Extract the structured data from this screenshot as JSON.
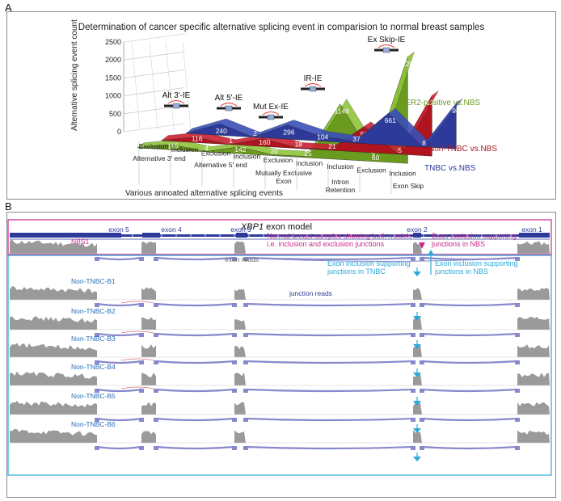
{
  "panelA": {
    "letter": "A",
    "title": "Determination of cancer specific alternative splicing event in comparision to normal breast samples",
    "ylabel": "Alternative splicing event count",
    "xlabel": "Various annoated alternative splicing events",
    "yticks": [
      "0",
      "500",
      "1000",
      "1500",
      "2000",
      "2500"
    ],
    "event_type_labels": [
      "Alt 3'-IE",
      "Alt 5'-IE",
      "Mut Ex-IE",
      "IR-IE",
      "Ex Skip-IE"
    ],
    "sub_categories": [
      "Exclusion",
      "Inclusion",
      "Exclusion",
      "Inclusion",
      "Exclusion",
      "Inclusion",
      "Inclusion",
      "Exclusion",
      "Inclusion"
    ],
    "groups": [
      "Alternative 3' end",
      "Alternative 5' end",
      "Mutually Exclusive Exon",
      "Intron Retention",
      "Exon Skip"
    ]
  },
  "chart_data": {
    "type": "area",
    "title": "Determination of cancer specific alternative splicing event in comparision to normal breast samples",
    "xlabel": "Various annoated alternative splicing events",
    "ylabel": "Alternative splicing event count",
    "ylim": [
      0,
      2500
    ],
    "categories": [
      "Alternative 3' end Exclusion",
      "Alternative 3' end Inclusion",
      "Alternative 5' end Exclusion",
      "Alternative 5' end Inclusion",
      "Mutually Exclusive Exon Exclusion",
      "Mutually Exclusive Exon Inclusion",
      "Intron Retention Inclusion",
      "Exon Skip Exclusion",
      "Exon Skip Inclusion"
    ],
    "series": [
      {
        "name": "TNBC vs.NBS",
        "color": "#2e3a9a",
        "values": [
          2,
          240,
          2,
          296,
          104,
          37,
          661,
          8,
          943
        ]
      },
      {
        "name": "Non-TNBC vs.NBS",
        "color": "#b0141e",
        "values": [
          7,
          116,
          1,
          160,
          18,
          21,
          528,
          5,
          1253
        ]
      },
      {
        "name": "HER2-positive vs.NBS",
        "color": "#6a9a1e",
        "values": [
          4,
          115,
          4,
          142,
          20,
          25,
          1148,
          60,
          2206
        ]
      }
    ]
  },
  "panelB": {
    "letter": "B",
    "gene_title": "XBP1",
    "gene_title_suffix": " exon model",
    "exons": [
      "exon 5",
      "exon 4",
      "exon 3",
      "exon 2",
      "exon 1"
    ],
    "samples": [
      "NBS1",
      "Non-TNBC-B1",
      "Non-TNBC-B2",
      "Non-TNBC-B3",
      "Non-TNBC-B4",
      "Non-TNBC-B5",
      "Non-TNBC-B6"
    ],
    "annotations": {
      "normal": "Normal breast samples showing both models i.e. inclusion and exclusion junctions",
      "excl_nbs": "Exon exclusion supporting junctions in NBS",
      "incl_tnbc": "Exon inclusion supporting junctions in TNBC",
      "incl_nbs": "Exon inclusion supporting junctions in NBS",
      "exon_reads": "exon reads",
      "junction_reads": "junction reads"
    },
    "colors": {
      "magenta": "#cc2a8c",
      "cyan": "#2aa8d8",
      "track": "#2c3a9c",
      "coverage": "#9a9a9a",
      "junction": "#8888cc"
    }
  }
}
